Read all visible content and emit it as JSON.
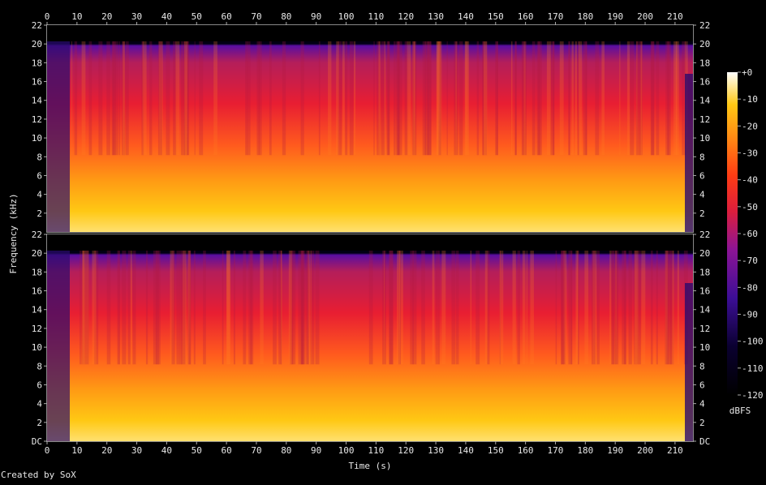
{
  "chart_data": {
    "type": "heatmap",
    "title": "",
    "xlabel": "Time (s)",
    "ylabel": "Frequency (kHz)",
    "x_ticks": [
      0,
      10,
      20,
      30,
      40,
      50,
      60,
      70,
      80,
      90,
      100,
      110,
      120,
      130,
      140,
      150,
      160,
      170,
      180,
      190,
      200,
      210
    ],
    "xlim": [
      0,
      216
    ],
    "y_ticks_top": [
      "22",
      "20",
      "18",
      "16",
      "14",
      "12",
      "10",
      "8",
      "6",
      "4",
      "2"
    ],
    "y_ticks_bottom": [
      "22",
      "20",
      "18",
      "16",
      "14",
      "12",
      "10",
      "8",
      "6",
      "4",
      "2",
      "DC"
    ],
    "ylim": [
      0,
      22
    ],
    "channels": 2,
    "colorbar": {
      "label": "dBFS",
      "ticks": [
        "+0",
        "-10",
        "-20",
        "-30",
        "-40",
        "-50",
        "-60",
        "-70",
        "-80",
        "-90",
        "-100",
        "-110",
        "-120"
      ],
      "range": [
        -120,
        0
      ]
    },
    "footer": "Created by SoX",
    "colors": {
      "background": "#000000",
      "low": "#000000",
      "mid_low": "#3c0e96",
      "mid": "#dc1e3c",
      "mid_high": "#ff6414",
      "high": "#ffc814",
      "peak": "#ffffff"
    }
  }
}
